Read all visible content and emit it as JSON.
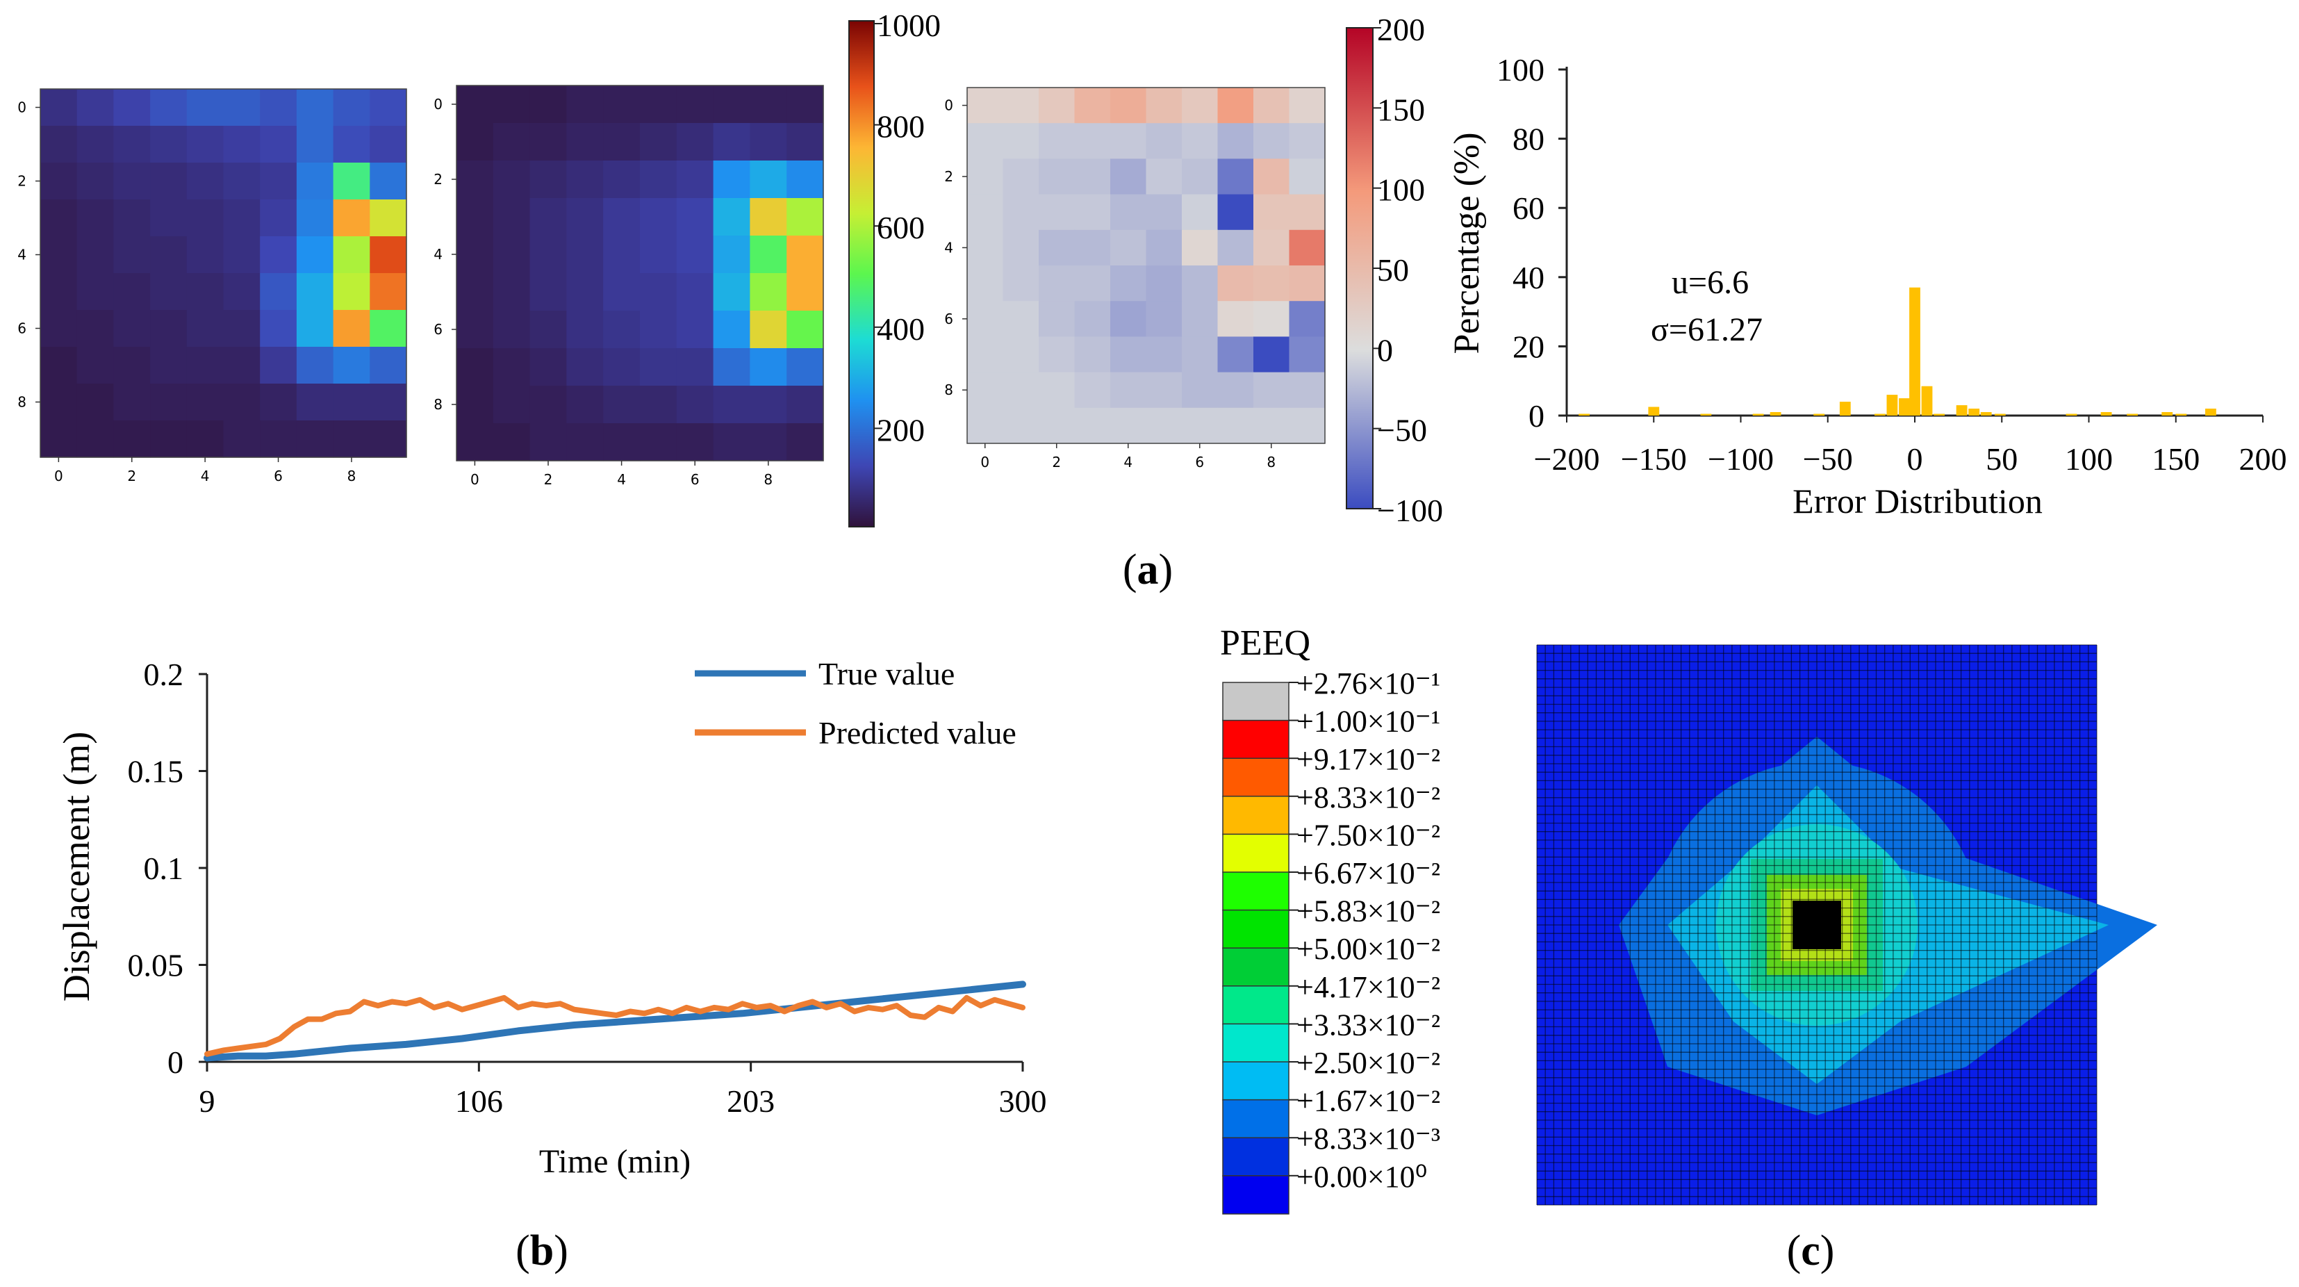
{
  "panel_labels": {
    "a": "(a)",
    "a_letter": "a",
    "b": "(b)",
    "b_letter": "b",
    "c": "(c)",
    "c_letter": "c"
  },
  "chart_data": [
    {
      "type": "heatmap",
      "id": "heatmap-true",
      "xticks": [
        "0",
        "2",
        "4",
        "6",
        "8"
      ],
      "yticks": [
        "0",
        "2",
        "4",
        "6",
        "8"
      ],
      "colormap": "jet",
      "vmin": 0,
      "vmax": 1000,
      "values": [
        [
          70,
          90,
          110,
          140,
          160,
          160,
          140,
          180,
          150,
          130
        ],
        [
          50,
          60,
          70,
          80,
          90,
          100,
          110,
          180,
          130,
          110
        ],
        [
          40,
          50,
          60,
          60,
          70,
          80,
          90,
          210,
          450,
          200
        ],
        [
          30,
          40,
          50,
          60,
          60,
          70,
          100,
          220,
          770,
          650
        ],
        [
          30,
          40,
          50,
          50,
          60,
          70,
          120,
          250,
          590,
          880
        ],
        [
          30,
          40,
          40,
          50,
          50,
          60,
          150,
          290,
          610,
          830
        ],
        [
          30,
          30,
          40,
          40,
          50,
          50,
          130,
          290,
          780,
          480
        ],
        [
          20,
          30,
          30,
          40,
          40,
          40,
          90,
          170,
          210,
          170
        ],
        [
          20,
          20,
          30,
          30,
          30,
          30,
          40,
          60,
          60,
          60
        ],
        [
          20,
          20,
          20,
          20,
          20,
          30,
          30,
          30,
          30,
          30
        ]
      ]
    },
    {
      "type": "heatmap",
      "id": "heatmap-pred",
      "xticks": [
        "0",
        "2",
        "4",
        "6",
        "8"
      ],
      "yticks": [
        "0",
        "2",
        "4",
        "6",
        "8"
      ],
      "colormap": "jet",
      "vmin": 0,
      "vmax": 1000,
      "values": [
        [
          20,
          20,
          20,
          30,
          30,
          30,
          30,
          30,
          30,
          30
        ],
        [
          20,
          30,
          30,
          40,
          40,
          50,
          60,
          80,
          70,
          60
        ],
        [
          30,
          40,
          50,
          60,
          70,
          80,
          90,
          250,
          290,
          240
        ],
        [
          30,
          40,
          60,
          70,
          90,
          100,
          110,
          300,
          700,
          590
        ],
        [
          30,
          40,
          60,
          70,
          90,
          100,
          110,
          280,
          480,
          760
        ],
        [
          30,
          40,
          60,
          70,
          90,
          90,
          100,
          300,
          560,
          760
        ],
        [
          30,
          40,
          50,
          70,
          80,
          90,
          100,
          260,
          680,
          510
        ],
        [
          20,
          30,
          40,
          60,
          70,
          80,
          80,
          190,
          240,
          190
        ],
        [
          20,
          30,
          30,
          40,
          50,
          50,
          60,
          70,
          70,
          60
        ],
        [
          20,
          20,
          30,
          30,
          30,
          30,
          30,
          40,
          40,
          30
        ]
      ]
    },
    {
      "type": "heatmap",
      "id": "heatmap-error",
      "xticks": [
        "0",
        "2",
        "4",
        "6",
        "8"
      ],
      "yticks": [
        "0",
        "2",
        "4",
        "6",
        "8"
      ],
      "colormap": "coolwarm",
      "vmin": -100,
      "vmax": 200,
      "values": [
        [
          15,
          15,
          30,
          60,
          70,
          45,
          30,
          90,
          40,
          15
        ],
        [
          -10,
          -10,
          -15,
          -15,
          -15,
          -20,
          -15,
          -30,
          -20,
          -15
        ],
        [
          -10,
          -15,
          -20,
          -20,
          -35,
          -15,
          -20,
          -70,
          50,
          -10
        ],
        [
          -10,
          -15,
          -15,
          -15,
          -25,
          -25,
          -10,
          -110,
          35,
          35
        ],
        [
          -10,
          -15,
          -25,
          -25,
          -20,
          -30,
          10,
          -25,
          30,
          120
        ],
        [
          -10,
          -15,
          -20,
          -20,
          -30,
          -35,
          -25,
          50,
          45,
          50
        ],
        [
          -10,
          -10,
          -20,
          -25,
          -40,
          -35,
          -25,
          10,
          5,
          -65
        ],
        [
          -10,
          -10,
          -15,
          -20,
          -30,
          -30,
          -25,
          -60,
          -100,
          -60
        ],
        [
          -10,
          -10,
          -10,
          -15,
          -20,
          -20,
          -25,
          -25,
          -20,
          -20
        ],
        [
          -10,
          -10,
          -10,
          -10,
          -10,
          -10,
          -10,
          -10,
          -10,
          -10
        ]
      ]
    },
    {
      "type": "bar",
      "id": "error-histogram",
      "xlabel": "Error Distribution",
      "ylabel": "Percentage (%)",
      "xlim": [
        -200,
        200
      ],
      "ylim": [
        0,
        100
      ],
      "xticks": [
        "−200",
        "−150",
        "−100",
        "−50",
        "0",
        "50",
        "100",
        "150",
        "200"
      ],
      "yticks": [
        "0",
        "20",
        "40",
        "60",
        "80",
        "100"
      ],
      "bin_width": 7,
      "x": [
        -190,
        -150,
        -120,
        -90,
        -80,
        -55,
        -40,
        -20,
        -13,
        -6,
        0,
        7,
        14,
        27,
        34,
        41,
        49,
        90,
        110,
        125,
        145,
        153,
        170
      ],
      "values": [
        0.5,
        2.5,
        0.5,
        0.5,
        1,
        0.5,
        4,
        0.5,
        6,
        5,
        37,
        8.5,
        0.5,
        3,
        2,
        1,
        0.5,
        0.5,
        1,
        0.5,
        1,
        0.5,
        2
      ],
      "annotations": [
        "u=6.6",
        "σ=61.27"
      ],
      "color": "#FFC000"
    },
    {
      "type": "line",
      "id": "displacement-time",
      "xlabel": "Time (min)",
      "ylabel": "Displacement (m)",
      "xlim": [
        9,
        300
      ],
      "ylim": [
        0,
        0.2
      ],
      "xticks": [
        "9",
        "106",
        "203",
        "300"
      ],
      "yticks": [
        "0",
        "0.05",
        "0.1",
        "0.15",
        "0.2"
      ],
      "legend": "top-right",
      "series": [
        {
          "name": "True value",
          "color": "#2E75B6",
          "x": [
            9,
            20,
            30,
            40,
            60,
            80,
            100,
            120,
            140,
            160,
            180,
            200,
            220,
            240,
            260,
            280,
            300
          ],
          "y": [
            0.002,
            0.003,
            0.003,
            0.004,
            0.007,
            0.009,
            0.012,
            0.016,
            0.019,
            0.021,
            0.023,
            0.025,
            0.028,
            0.031,
            0.034,
            0.037,
            0.04
          ]
        },
        {
          "name": "Predicted value",
          "color": "#ED7D31",
          "x": [
            9,
            15,
            20,
            25,
            30,
            35,
            40,
            45,
            50,
            55,
            60,
            65,
            70,
            75,
            80,
            85,
            90,
            95,
            100,
            105,
            110,
            115,
            120,
            125,
            130,
            135,
            140,
            145,
            150,
            155,
            160,
            165,
            170,
            175,
            180,
            185,
            190,
            195,
            200,
            205,
            210,
            215,
            220,
            225,
            230,
            235,
            240,
            245,
            250,
            255,
            260,
            265,
            270,
            275,
            280,
            285,
            290,
            295,
            300
          ],
          "y": [
            0.004,
            0.006,
            0.007,
            0.008,
            0.009,
            0.012,
            0.018,
            0.022,
            0.022,
            0.025,
            0.026,
            0.031,
            0.029,
            0.031,
            0.03,
            0.032,
            0.028,
            0.03,
            0.027,
            0.029,
            0.031,
            0.033,
            0.028,
            0.03,
            0.029,
            0.03,
            0.027,
            0.026,
            0.025,
            0.024,
            0.026,
            0.025,
            0.027,
            0.025,
            0.028,
            0.026,
            0.028,
            0.027,
            0.03,
            0.028,
            0.029,
            0.026,
            0.029,
            0.031,
            0.028,
            0.03,
            0.026,
            0.028,
            0.027,
            0.029,
            0.024,
            0.023,
            0.028,
            0.026,
            0.033,
            0.029,
            0.032,
            0.03,
            0.028
          ]
        }
      ]
    },
    {
      "type": "heatmap",
      "id": "peeq-contour",
      "title": "PEEQ",
      "legend_labels": [
        "+2.76×10⁻¹",
        "+1.00×10⁻¹",
        "+9.17×10⁻²",
        "+8.33×10⁻²",
        "+7.50×10⁻²",
        "+6.67×10⁻²",
        "+5.83×10⁻²",
        "+5.00×10⁻²",
        "+4.17×10⁻²",
        "+3.33×10⁻²",
        "+2.50×10⁻²",
        "+1.67×10⁻²",
        "+8.33×10⁻³",
        "+0.00×10⁰"
      ],
      "legend_colors": [
        "#C8C8C8",
        "#FF0000",
        "#FF5A00",
        "#FFB900",
        "#E3FF00",
        "#1EFF00",
        "#00E400",
        "#00CE36",
        "#00E88A",
        "#00E7CC",
        "#00BCF3",
        "#0070E8",
        "#0030E0",
        "#0000F0"
      ]
    }
  ],
  "colorbars": {
    "jet_ticks": [
      "1000",
      "800",
      "600",
      "400",
      "200"
    ],
    "coolwarm_ticks": [
      "200",
      "150",
      "100",
      "50",
      "0",
      "−50",
      "−100"
    ]
  }
}
